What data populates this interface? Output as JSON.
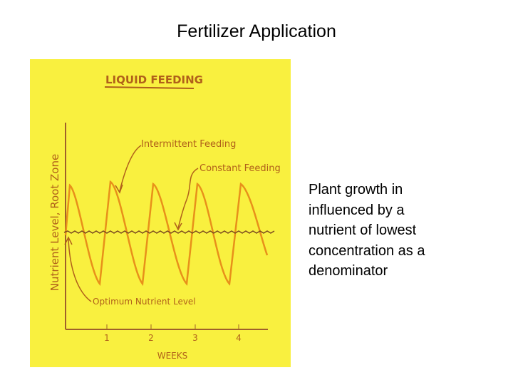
{
  "header": {
    "title": "Fertilizer Application"
  },
  "figure": {
    "heading": "LIQUID FEEDING",
    "y_label": "Nutrient Level, Root Zone",
    "x_label": "WEEKS",
    "x_ticks": [
      1,
      2,
      3,
      4
    ],
    "annotations": [
      "Intermittent Feeding",
      "Constant Feeding",
      "Optimum Nutrient Level"
    ]
  },
  "body": {
    "lines": [
      "Plant growth in",
      "influenced by a",
      "nutrient of lowest",
      "concentration as a",
      "denominator"
    ]
  }
}
